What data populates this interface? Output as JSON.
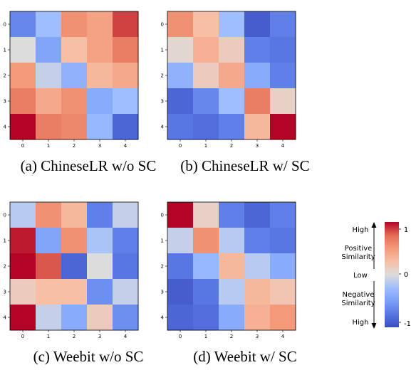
{
  "chart_data": [
    {
      "type": "heatmap",
      "caption": "(a) ChineseLR w/o SC",
      "x_ticks": [
        "0",
        "1",
        "2",
        "3",
        "4"
      ],
      "y_ticks": [
        "0",
        "1",
        "2",
        "3",
        "4"
      ],
      "values": [
        [
          -0.65,
          -0.25,
          0.55,
          0.45,
          0.85
        ],
        [
          0.0,
          -0.45,
          0.25,
          0.45,
          0.65
        ],
        [
          0.5,
          -0.1,
          -0.35,
          0.3,
          0.4
        ],
        [
          0.65,
          0.4,
          0.55,
          -0.4,
          -0.25
        ],
        [
          1.0,
          0.65,
          0.6,
          -0.3,
          -0.85
        ]
      ]
    },
    {
      "type": "heatmap",
      "caption": "(b) ChineseLR w/ SC",
      "x_ticks": [
        "0",
        "1",
        "2",
        "3",
        "4"
      ],
      "y_ticks": [
        "0",
        "1",
        "2",
        "3",
        "4"
      ],
      "values": [
        [
          0.55,
          0.25,
          -0.25,
          -0.9,
          -0.7
        ],
        [
          0.05,
          0.35,
          0.15,
          -0.7,
          -0.75
        ],
        [
          -0.35,
          0.15,
          0.4,
          -0.4,
          -0.7
        ],
        [
          -0.85,
          -0.65,
          -0.25,
          0.65,
          0.1
        ],
        [
          -0.75,
          -0.8,
          -0.7,
          0.3,
          1.0
        ]
      ]
    },
    {
      "type": "heatmap",
      "caption": "(c) Weebit w/o SC",
      "x_ticks": [
        "0",
        "1",
        "2",
        "3",
        "4"
      ],
      "y_ticks": [
        "0",
        "1",
        "2",
        "3",
        "4"
      ],
      "values": [
        [
          -0.15,
          0.55,
          0.3,
          -0.7,
          -0.1
        ],
        [
          0.95,
          -0.45,
          0.55,
          -0.2,
          -0.7
        ],
        [
          1.0,
          0.8,
          -0.85,
          0.0,
          -0.75
        ],
        [
          0.15,
          0.25,
          0.25,
          -0.6,
          -0.1
        ],
        [
          1.0,
          -0.1,
          -0.4,
          0.15,
          -0.6
        ]
      ]
    },
    {
      "type": "heatmap",
      "caption": "(d) Weebit w/ SC",
      "x_ticks": [
        "0",
        "1",
        "2",
        "3",
        "4"
      ],
      "y_ticks": [
        "0",
        "1",
        "2",
        "3",
        "4"
      ],
      "values": [
        [
          1.0,
          0.1,
          -0.7,
          -0.85,
          -0.7
        ],
        [
          -0.1,
          0.55,
          -0.15,
          -0.7,
          -0.75
        ],
        [
          -0.75,
          -0.3,
          0.3,
          -0.15,
          -0.4
        ],
        [
          -0.9,
          -0.75,
          -0.15,
          0.3,
          0.2
        ],
        [
          -0.85,
          -0.8,
          -0.4,
          0.35,
          0.5
        ]
      ]
    }
  ],
  "colorbar": {
    "ticks": [
      "1",
      "0",
      "-1"
    ],
    "range": [
      -1,
      1
    ],
    "colormap": "coolwarm",
    "labels": {
      "high_top": "High",
      "positive_line1": "Positive",
      "positive_line2": "Similarity",
      "low": "Low",
      "negative_line1": "Negative",
      "negative_line2": "Similarity",
      "high_bottom": "High"
    }
  }
}
